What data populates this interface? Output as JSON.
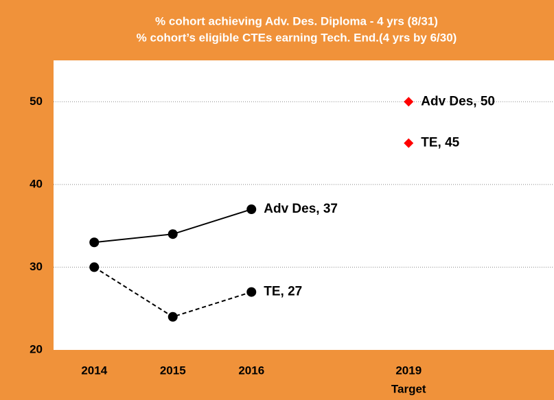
{
  "chart_data": {
    "type": "line",
    "title": "% cohort achieving Adv. Des. Diploma - 4 yrs (8/31)",
    "subtitle": "% cohort’s eligible CTEs earning  Tech. End.(4 yrs by 6/30)",
    "categories": [
      "2014",
      "2015",
      "2016",
      null,
      "2019"
    ],
    "target_label": "Target",
    "series": [
      {
        "name": "Adv Des",
        "color": "#000000",
        "line_style": "solid",
        "values": [
          33,
          34,
          37,
          null,
          50
        ],
        "value_labels": [
          null,
          null,
          "Adv Des, 37",
          null,
          "Adv Des, 50"
        ]
      },
      {
        "name": "TE",
        "color": "#000000",
        "line_style": "dashed",
        "values": [
          30,
          24,
          27,
          null,
          45
        ],
        "value_labels": [
          null,
          null,
          "TE, 27",
          null,
          "TE, 45"
        ]
      }
    ],
    "target_color": "#ff0000",
    "ylim": [
      20,
      55
    ],
    "yticks": [
      20,
      30,
      40,
      50
    ],
    "grid": true
  }
}
